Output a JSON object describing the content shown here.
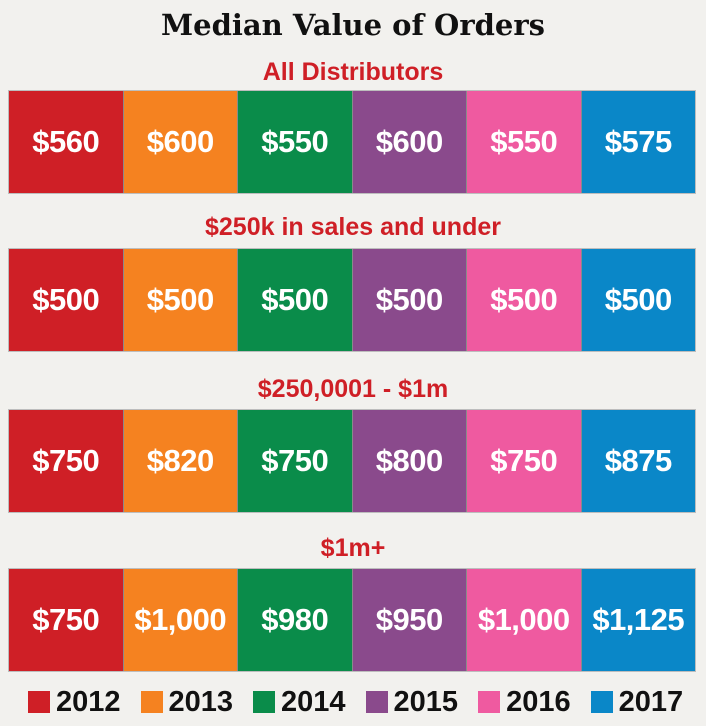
{
  "title": "Median Value of Orders",
  "colors": {
    "accent_red": "#cf1f26",
    "series": [
      "#cf1f26",
      "#f58220",
      "#0a8c4a",
      "#8a4a8c",
      "#ef5aa0",
      "#0a87c8"
    ]
  },
  "chart_data": {
    "type": "table",
    "title": "Median Value of Orders",
    "years": [
      "2012",
      "2013",
      "2014",
      "2015",
      "2016",
      "2017"
    ],
    "groups": [
      {
        "name": "All Distributors",
        "values": [
          560,
          600,
          550,
          600,
          550,
          575
        ],
        "labels": [
          "$560",
          "$600",
          "$550",
          "$600",
          "$550",
          "$575"
        ]
      },
      {
        "name": "$250k in sales and under",
        "values": [
          500,
          500,
          500,
          500,
          500,
          500
        ],
        "labels": [
          "$500",
          "$500",
          "$500",
          "$500",
          "$500",
          "$500"
        ]
      },
      {
        "name": "$250,0001 - $1m",
        "values": [
          750,
          820,
          750,
          800,
          750,
          875
        ],
        "labels": [
          "$750",
          "$820",
          "$750",
          "$800",
          "$750",
          "$875"
        ]
      },
      {
        "name": "$1m+",
        "values": [
          750,
          1000,
          980,
          950,
          1000,
          1125
        ],
        "labels": [
          "$750",
          "$1,000",
          "$980",
          "$950",
          "$1,000",
          "$1,125"
        ]
      }
    ]
  }
}
